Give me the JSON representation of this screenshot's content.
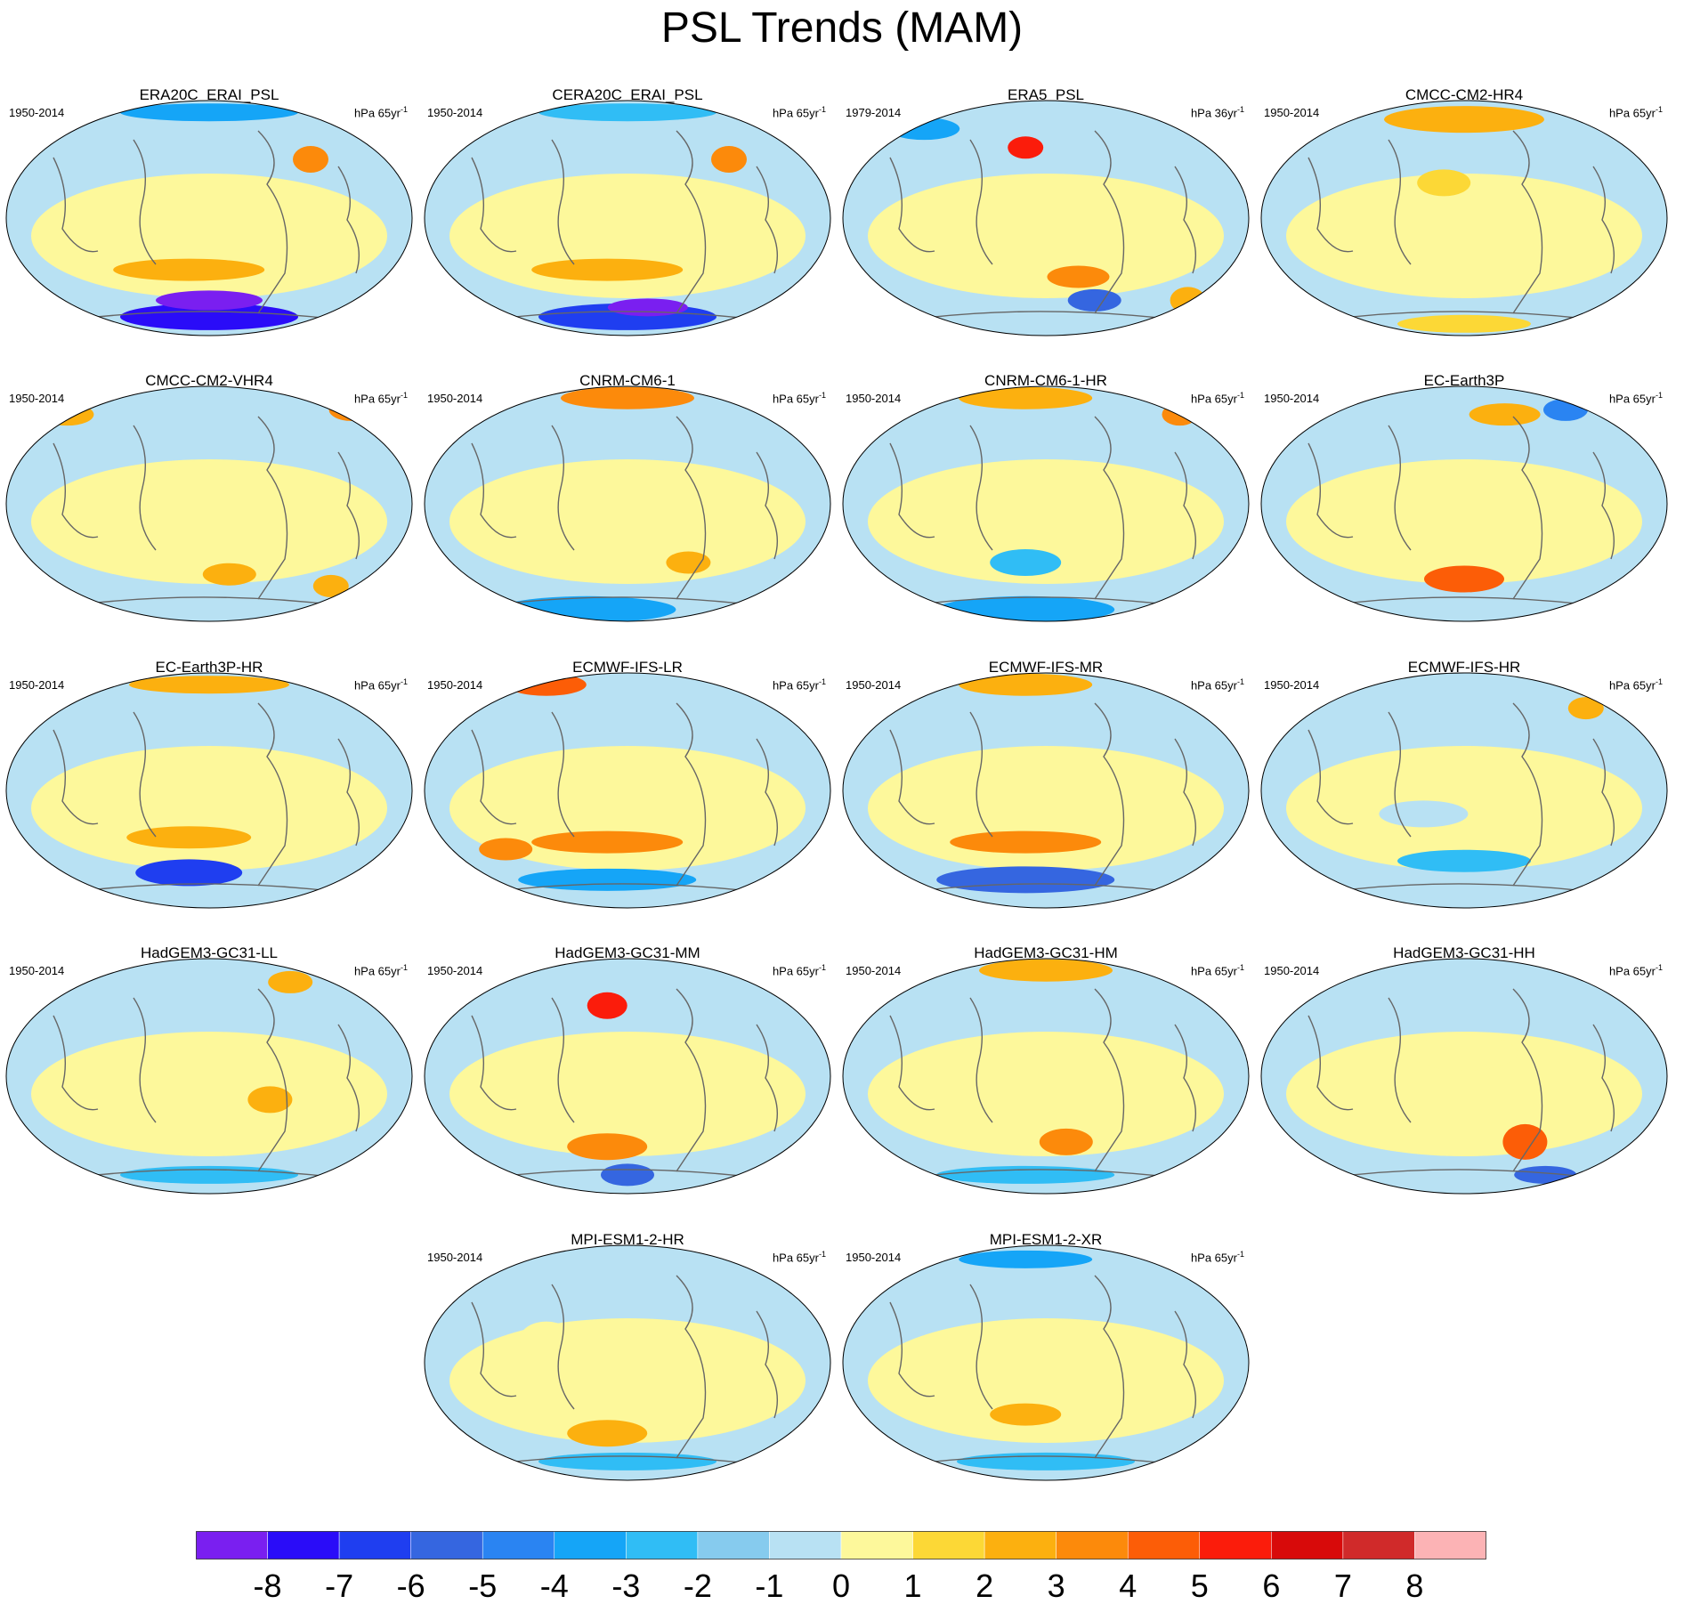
{
  "title": "PSL Trends (MAM)",
  "panels": [
    {
      "name": "ERA20C_ERAI_PSL",
      "period": "1950-2014",
      "units": "hPa 65yr",
      "units_exp": "-1"
    },
    {
      "name": "CERA20C_ERAI_PSL",
      "period": "1950-2014",
      "units": "hPa 65yr",
      "units_exp": "-1"
    },
    {
      "name": "ERA5_PSL",
      "period": "1979-2014",
      "units": "hPa 36yr",
      "units_exp": "-1"
    },
    {
      "name": "CMCC-CM2-HR4",
      "period": "1950-2014",
      "units": "hPa 65yr",
      "units_exp": "-1"
    },
    {
      "name": "CMCC-CM2-VHR4",
      "period": "1950-2014",
      "units": "hPa 65yr",
      "units_exp": "-1"
    },
    {
      "name": "CNRM-CM6-1",
      "period": "1950-2014",
      "units": "hPa 65yr",
      "units_exp": "-1"
    },
    {
      "name": "CNRM-CM6-1-HR",
      "period": "1950-2014",
      "units": "hPa 65yr",
      "units_exp": "-1"
    },
    {
      "name": "EC-Earth3P",
      "period": "1950-2014",
      "units": "hPa 65yr",
      "units_exp": "-1"
    },
    {
      "name": "EC-Earth3P-HR",
      "period": "1950-2014",
      "units": "hPa 65yr",
      "units_exp": "-1"
    },
    {
      "name": "ECMWF-IFS-LR",
      "period": "1950-2014",
      "units": "hPa 65yr",
      "units_exp": "-1"
    },
    {
      "name": "ECMWF-IFS-MR",
      "period": "1950-2014",
      "units": "hPa 65yr",
      "units_exp": "-1"
    },
    {
      "name": "ECMWF-IFS-HR",
      "period": "1950-2014",
      "units": "hPa 65yr",
      "units_exp": "-1"
    },
    {
      "name": "HadGEM3-GC31-LL",
      "period": "1950-2014",
      "units": "hPa 65yr",
      "units_exp": "-1"
    },
    {
      "name": "HadGEM3-GC31-MM",
      "period": "1950-2014",
      "units": "hPa 65yr",
      "units_exp": "-1"
    },
    {
      "name": "HadGEM3-GC31-HM",
      "period": "1950-2014",
      "units": "hPa 65yr",
      "units_exp": "-1"
    },
    {
      "name": "HadGEM3-GC31-HH",
      "period": "1950-2014",
      "units": "hPa 65yr",
      "units_exp": "-1"
    },
    {
      "name": "MPI-ESM1-2-HR",
      "period": "1950-2014",
      "units": "hPa 65yr",
      "units_exp": "-1"
    },
    {
      "name": "MPI-ESM1-2-XR",
      "period": "1950-2014",
      "units": "hPa 65yr",
      "units_exp": "-1"
    }
  ],
  "colorbar": {
    "labels": [
      "-8",
      "-7",
      "-6",
      "-5",
      "-4",
      "-3",
      "-2",
      "-1",
      "0",
      "1",
      "2",
      "3",
      "4",
      "5",
      "6",
      "7",
      "8"
    ],
    "colors": [
      "#7a1ff0",
      "#2a0cf8",
      "#1f3ef0",
      "#3566e0",
      "#2a84f2",
      "#15a5f7",
      "#30bdf5",
      "#86cbee",
      "#b8e1f3",
      "#fdf89b",
      "#fcd836",
      "#fcb00f",
      "#fc8a0b",
      "#fc5d07",
      "#fb1c0b",
      "#d80a0a",
      "#d02a2a",
      "#fcb3b5"
    ]
  }
}
